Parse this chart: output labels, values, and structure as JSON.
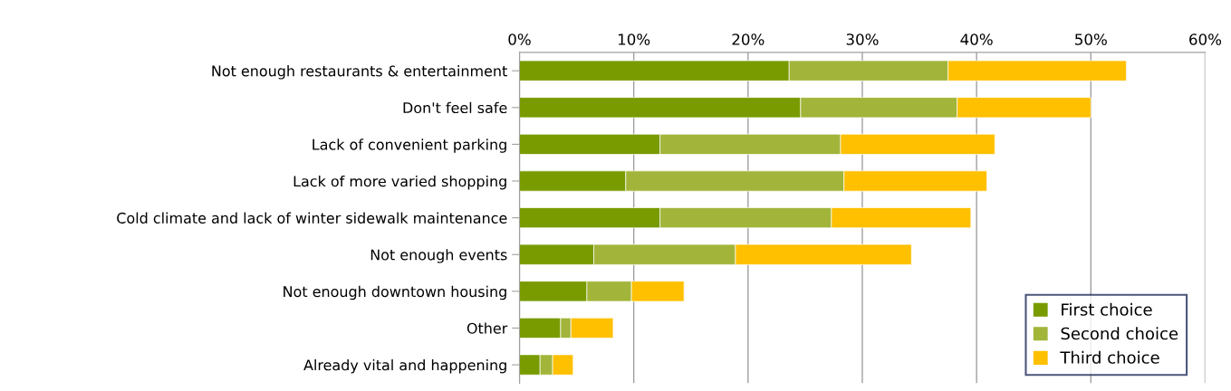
{
  "chart_data": {
    "type": "bar",
    "orientation": "horizontal",
    "stacked": true,
    "categories": [
      "Not enough restaurants & entertainment",
      "Don't feel safe",
      "Lack of convenient parking",
      "Lack of more varied shopping",
      "Cold climate and lack of winter sidewalk maintenance",
      "Not enough events",
      "Not enough downtown housing",
      "Other",
      "Already vital and happening"
    ],
    "series": [
      {
        "name": "First choice",
        "color": "#799b00",
        "values": [
          23.6,
          24.6,
          12.3,
          9.3,
          12.3,
          6.5,
          5.9,
          3.6,
          1.8
        ]
      },
      {
        "name": "Second choice",
        "color": "#a2b53a",
        "values": [
          13.9,
          13.7,
          15.8,
          19.1,
          15.0,
          12.4,
          3.9,
          0.9,
          1.1
        ]
      },
      {
        "name": "Third choice",
        "color": "#ffc000",
        "values": [
          15.6,
          11.7,
          13.5,
          12.5,
          12.2,
          15.4,
          4.6,
          3.7,
          1.8
        ]
      }
    ],
    "xlim": [
      0,
      60
    ],
    "xticks": [
      {
        "value": 0,
        "label": "0%"
      },
      {
        "value": 10,
        "label": "10%"
      },
      {
        "value": 20,
        "label": "20%"
      },
      {
        "value": 30,
        "label": "30%"
      },
      {
        "value": 40,
        "label": "40%"
      },
      {
        "value": 50,
        "label": "50%"
      },
      {
        "value": 60,
        "label": "60%"
      }
    ],
    "grid": "x",
    "legend": "bottom right"
  }
}
